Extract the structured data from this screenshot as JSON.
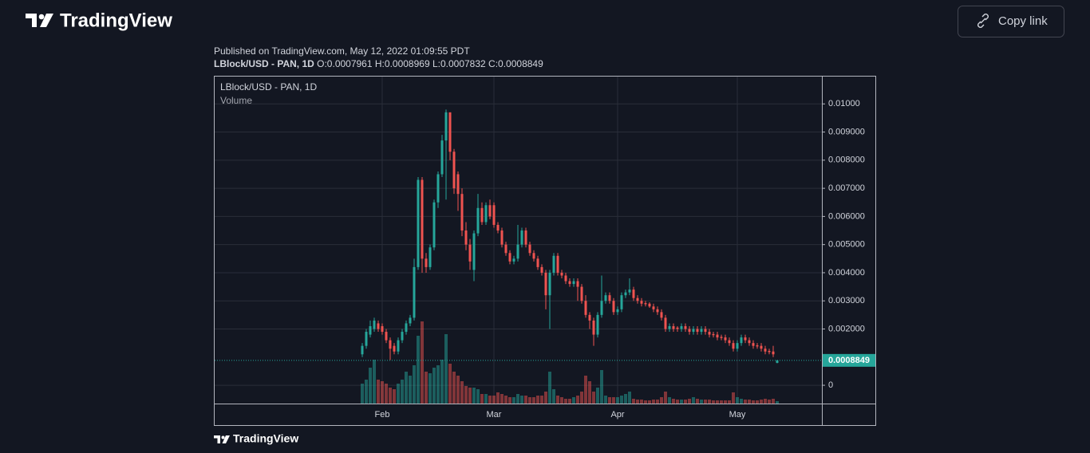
{
  "header": {
    "brand": "TradingView",
    "copy_link": "Copy link"
  },
  "publish": {
    "published": "Published on TradingView.com, May 12, 2022 01:09:55 PDT",
    "symbol": "LBlock/USD - PAN, 1D",
    "o": "O:0.0007961",
    "h": "H:0.0008969",
    "l": "L:0.0007832",
    "c": "C:0.0008849"
  },
  "footer": {
    "brand": "TradingView"
  },
  "chart_data": {
    "type": "candlestick",
    "title": "LBlock/USD - PAN, 1D",
    "volume_label": "Volume",
    "last_price_label": "0.0008849",
    "up_color": "#26a69a",
    "down_color": "#ef5350",
    "grid": true,
    "ylim": [
      -0.00065,
      0.011
    ],
    "yticks": [
      0,
      {
        "value": 0.002,
        "label": "0.002000"
      },
      {
        "value": 0.003,
        "label": "0.003000"
      },
      {
        "value": 0.004,
        "label": "0.004000"
      },
      {
        "value": 0.005,
        "label": "0.005000"
      },
      {
        "value": 0.006,
        "label": "0.006000"
      },
      {
        "value": 0.007,
        "label": "0.007000"
      },
      {
        "value": 0.008,
        "label": "0.008000"
      },
      {
        "value": 0.009,
        "label": "0.009000"
      },
      {
        "value": 0.01,
        "label": "0.01000"
      }
    ],
    "categories": [
      null,
      null,
      null,
      null,
      null,
      "Feb",
      null,
      null,
      null,
      null,
      null,
      null,
      null,
      null,
      null,
      null,
      null,
      null,
      null,
      null,
      null,
      null,
      null,
      null,
      null,
      null,
      null,
      null,
      null,
      null,
      null,
      null,
      null,
      "Mar",
      null,
      null,
      null,
      null,
      null,
      null,
      null,
      null,
      null,
      null,
      null,
      null,
      null,
      null,
      null,
      null,
      null,
      null,
      null,
      null,
      null,
      null,
      null,
      null,
      null,
      null,
      null,
      null,
      null,
      null,
      "Apr",
      null,
      null,
      null,
      null,
      null,
      null,
      null,
      null,
      null,
      null,
      null,
      null,
      null,
      null,
      null,
      null,
      null,
      null,
      null,
      null,
      null,
      null,
      null,
      null,
      null,
      null,
      null,
      null,
      null,
      "May",
      null,
      null,
      null,
      null,
      null,
      null,
      null,
      null,
      null,
      null
    ],
    "ohlc": [
      [
        0.0011,
        0.0015,
        0.001,
        0.0014
      ],
      [
        0.0014,
        0.002,
        0.0013,
        0.0019
      ],
      [
        0.0018,
        0.0023,
        0.0017,
        0.0021
      ],
      [
        0.002,
        0.0024,
        0.0019,
        0.0023
      ],
      [
        0.0022,
        0.0023,
        0.0019,
        0.002
      ],
      [
        0.0021,
        0.0022,
        0.0018,
        0.0019
      ],
      [
        0.0019,
        0.002,
        0.0015,
        0.0016
      ],
      [
        0.0016,
        0.0017,
        0.0009,
        0.0013
      ],
      [
        0.0014,
        0.0015,
        0.0011,
        0.0012
      ],
      [
        0.0012,
        0.0017,
        0.0011,
        0.0016
      ],
      [
        0.0016,
        0.002,
        0.0015,
        0.0019
      ],
      [
        0.0019,
        0.0023,
        0.0018,
        0.0022
      ],
      [
        0.0022,
        0.0025,
        0.0021,
        0.0024
      ],
      [
        0.0024,
        0.0045,
        0.0023,
        0.0042
      ],
      [
        0.0042,
        0.0074,
        0.0041,
        0.0073
      ],
      [
        0.0073,
        0.0074,
        0.004,
        0.0045
      ],
      [
        0.0045,
        0.0047,
        0.004,
        0.0042
      ],
      [
        0.0042,
        0.005,
        0.0041,
        0.0049
      ],
      [
        0.0049,
        0.0066,
        0.0048,
        0.0065
      ],
      [
        0.0065,
        0.0076,
        0.0063,
        0.0075
      ],
      [
        0.0075,
        0.0089,
        0.0074,
        0.0087
      ],
      [
        0.0087,
        0.0098,
        0.0066,
        0.0097
      ],
      [
        0.0097,
        0.0097,
        0.008,
        0.0083
      ],
      [
        0.0083,
        0.0084,
        0.0068,
        0.007
      ],
      [
        0.0075,
        0.0076,
        0.0062,
        0.0068
      ],
      [
        0.0068,
        0.007,
        0.0053,
        0.0055
      ],
      [
        0.0055,
        0.0058,
        0.0048,
        0.005
      ],
      [
        0.005,
        0.0052,
        0.0041,
        0.0044
      ],
      [
        0.0041,
        0.0055,
        0.0037,
        0.0054
      ],
      [
        0.0054,
        0.0068,
        0.0053,
        0.0063
      ],
      [
        0.0063,
        0.0065,
        0.0057,
        0.0058
      ],
      [
        0.0058,
        0.0065,
        0.0057,
        0.0064
      ],
      [
        0.0064,
        0.0066,
        0.0059,
        0.006
      ],
      [
        0.0064,
        0.0065,
        0.0056,
        0.0057
      ],
      [
        0.0057,
        0.0058,
        0.0054,
        0.0055
      ],
      [
        0.0055,
        0.0056,
        0.0049,
        0.005
      ],
      [
        0.005,
        0.0051,
        0.0046,
        0.0047
      ],
      [
        0.0047,
        0.0048,
        0.0043,
        0.0044
      ],
      [
        0.0044,
        0.0046,
        0.0043,
        0.0045
      ],
      [
        0.0045,
        0.0057,
        0.0044,
        0.005
      ],
      [
        0.005,
        0.0056,
        0.0049,
        0.0055
      ],
      [
        0.0055,
        0.0056,
        0.0049,
        0.005
      ],
      [
        0.005,
        0.0051,
        0.0046,
        0.0047
      ],
      [
        0.0047,
        0.0048,
        0.0044,
        0.0045
      ],
      [
        0.0045,
        0.0046,
        0.0041,
        0.0042
      ],
      [
        0.0042,
        0.0043,
        0.0039,
        0.004
      ],
      [
        0.004,
        0.0041,
        0.0027,
        0.0032
      ],
      [
        0.0032,
        0.0041,
        0.002,
        0.004
      ],
      [
        0.004,
        0.0047,
        0.0039,
        0.0046
      ],
      [
        0.0046,
        0.0047,
        0.0039,
        0.004
      ],
      [
        0.004,
        0.0041,
        0.0038,
        0.0039
      ],
      [
        0.0039,
        0.004,
        0.0036,
        0.0037
      ],
      [
        0.0037,
        0.0038,
        0.0035,
        0.0036
      ],
      [
        0.0036,
        0.0038,
        0.0035,
        0.0037
      ],
      [
        0.0037,
        0.0038,
        0.003,
        0.0035
      ],
      [
        0.0035,
        0.0036,
        0.0029,
        0.003
      ],
      [
        0.003,
        0.0032,
        0.0024,
        0.0025
      ],
      [
        0.0025,
        0.0026,
        0.002,
        0.0023
      ],
      [
        0.0023,
        0.0024,
        0.0014,
        0.0018
      ],
      [
        0.0018,
        0.0026,
        0.0017,
        0.0025
      ],
      [
        0.0025,
        0.0039,
        0.0024,
        0.003
      ],
      [
        0.003,
        0.0033,
        0.0029,
        0.0032
      ],
      [
        0.0032,
        0.0033,
        0.0029,
        0.003
      ],
      [
        0.003,
        0.0031,
        0.0025,
        0.0026
      ],
      [
        0.0026,
        0.0028,
        0.0025,
        0.0027
      ],
      [
        0.0027,
        0.0033,
        0.0026,
        0.0032
      ],
      [
        0.0032,
        0.0034,
        0.0031,
        0.0033
      ],
      [
        0.0033,
        0.0038,
        0.0032,
        0.0034
      ],
      [
        0.0034,
        0.0035,
        0.003,
        0.0031
      ],
      [
        0.0031,
        0.0032,
        0.0029,
        0.003
      ],
      [
        0.003,
        0.0031,
        0.0028,
        0.0029
      ],
      [
        0.00292,
        0.003,
        0.0028,
        0.00288
      ],
      [
        0.0029,
        0.00295,
        0.00275,
        0.0028
      ],
      [
        0.0028,
        0.0029,
        0.0026,
        0.0027
      ],
      [
        0.0027,
        0.0028,
        0.0025,
        0.0026
      ],
      [
        0.0026,
        0.0027,
        0.0023,
        0.0024
      ],
      [
        0.0024,
        0.0025,
        0.0019,
        0.002
      ],
      [
        0.002,
        0.0022,
        0.0019,
        0.0021
      ],
      [
        0.0021,
        0.0022,
        0.0019,
        0.002
      ],
      [
        0.00205,
        0.0021,
        0.0019,
        0.002
      ],
      [
        0.002,
        0.0022,
        0.0019,
        0.0021
      ],
      [
        0.0021,
        0.0022,
        0.0019,
        0.002
      ],
      [
        0.002,
        0.0021,
        0.0018,
        0.0019
      ],
      [
        0.0019,
        0.0021,
        0.0018,
        0.002
      ],
      [
        0.002,
        0.0021,
        0.0018,
        0.0019
      ],
      [
        0.0019,
        0.0021,
        0.0018,
        0.002
      ],
      [
        0.002,
        0.0021,
        0.0018,
        0.0019
      ],
      [
        0.0019,
        0.002,
        0.0017,
        0.0018
      ],
      [
        0.00182,
        0.0019,
        0.0017,
        0.00178
      ],
      [
        0.0018,
        0.0019,
        0.0016,
        0.0017
      ],
      [
        0.00172,
        0.0018,
        0.0016,
        0.00168
      ],
      [
        0.0017,
        0.0018,
        0.0015,
        0.0016
      ],
      [
        0.0016,
        0.0017,
        0.0014,
        0.0015
      ],
      [
        0.0015,
        0.0016,
        0.0012,
        0.0013
      ],
      [
        0.0013,
        0.0016,
        0.0012,
        0.0015
      ],
      [
        0.0015,
        0.0018,
        0.0014,
        0.0017
      ],
      [
        0.0017,
        0.0018,
        0.0015,
        0.0016
      ],
      [
        0.0016,
        0.0017,
        0.0014,
        0.0015
      ],
      [
        0.0015,
        0.0016,
        0.0013,
        0.0014
      ],
      [
        0.00142,
        0.0015,
        0.0013,
        0.00138
      ],
      [
        0.0014,
        0.0015,
        0.0012,
        0.0013
      ],
      [
        0.0013,
        0.0014,
        0.0011,
        0.0012
      ],
      [
        0.00122,
        0.0013,
        0.0011,
        0.00118
      ],
      [
        0.0012,
        0.0014,
        0.001,
        0.0011
      ],
      [
        0.0007961,
        0.0008969,
        0.0007832,
        0.0008849
      ]
    ],
    "volume": [
      25,
      30,
      45,
      55,
      30,
      28,
      25,
      20,
      18,
      25,
      30,
      40,
      35,
      48,
      85,
      103,
      40,
      38,
      45,
      48,
      55,
      87,
      50,
      40,
      35,
      28,
      22,
      20,
      20,
      18,
      12,
      12,
      10,
      10,
      14,
      12,
      10,
      8,
      8,
      12,
      10,
      10,
      8,
      8,
      10,
      10,
      15,
      40,
      18,
      10,
      8,
      6,
      6,
      8,
      10,
      15,
      35,
      28,
      15,
      20,
      42,
      10,
      8,
      8,
      8,
      10,
      12,
      15,
      6,
      5,
      5,
      4,
      4,
      5,
      5,
      8,
      15,
      8,
      6,
      5,
      5,
      5,
      6,
      8,
      6,
      5,
      5,
      5,
      4,
      4,
      4,
      4,
      4,
      14,
      8,
      6,
      5,
      5,
      4,
      4,
      5,
      6,
      5,
      6,
      3
    ]
  }
}
